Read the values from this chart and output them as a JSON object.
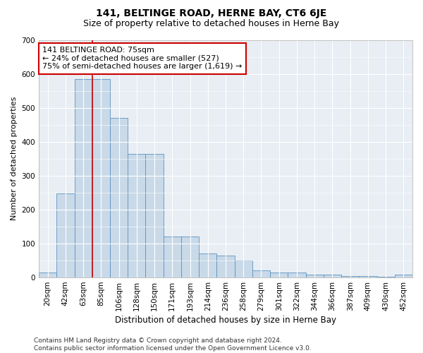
{
  "title": "141, BELTINGE ROAD, HERNE BAY, CT6 6JE",
  "subtitle": "Size of property relative to detached houses in Herne Bay",
  "xlabel": "Distribution of detached houses by size in Herne Bay",
  "ylabel": "Number of detached properties",
  "bar_labels": [
    "20sqm",
    "42sqm",
    "63sqm",
    "85sqm",
    "106sqm",
    "128sqm",
    "150sqm",
    "171sqm",
    "193sqm",
    "214sqm",
    "236sqm",
    "258sqm",
    "279sqm",
    "301sqm",
    "322sqm",
    "344sqm",
    "366sqm",
    "387sqm",
    "409sqm",
    "430sqm",
    "452sqm"
  ],
  "bar_values": [
    15,
    248,
    585,
    585,
    470,
    365,
    365,
    120,
    120,
    70,
    65,
    50,
    20,
    15,
    15,
    8,
    8,
    4,
    4,
    2,
    8
  ],
  "bar_color": "#c9d9e8",
  "bar_edge_color": "#5b92c0",
  "vline_color": "#cc0000",
  "annotation_text": "141 BELTINGE ROAD: 75sqm\n← 24% of detached houses are smaller (527)\n75% of semi-detached houses are larger (1,619) →",
  "annotation_box_color": "white",
  "annotation_box_edge": "#cc0000",
  "ylim": [
    0,
    700
  ],
  "yticks": [
    0,
    100,
    200,
    300,
    400,
    500,
    600,
    700
  ],
  "footer": "Contains HM Land Registry data © Crown copyright and database right 2024.\nContains public sector information licensed under the Open Government Licence v3.0.",
  "background_color": "#e8eef4",
  "grid_color": "#ffffff",
  "title_fontsize": 10,
  "subtitle_fontsize": 9,
  "axis_label_fontsize": 8,
  "tick_fontsize": 7.5,
  "annotation_fontsize": 8,
  "footer_fontsize": 6.5
}
